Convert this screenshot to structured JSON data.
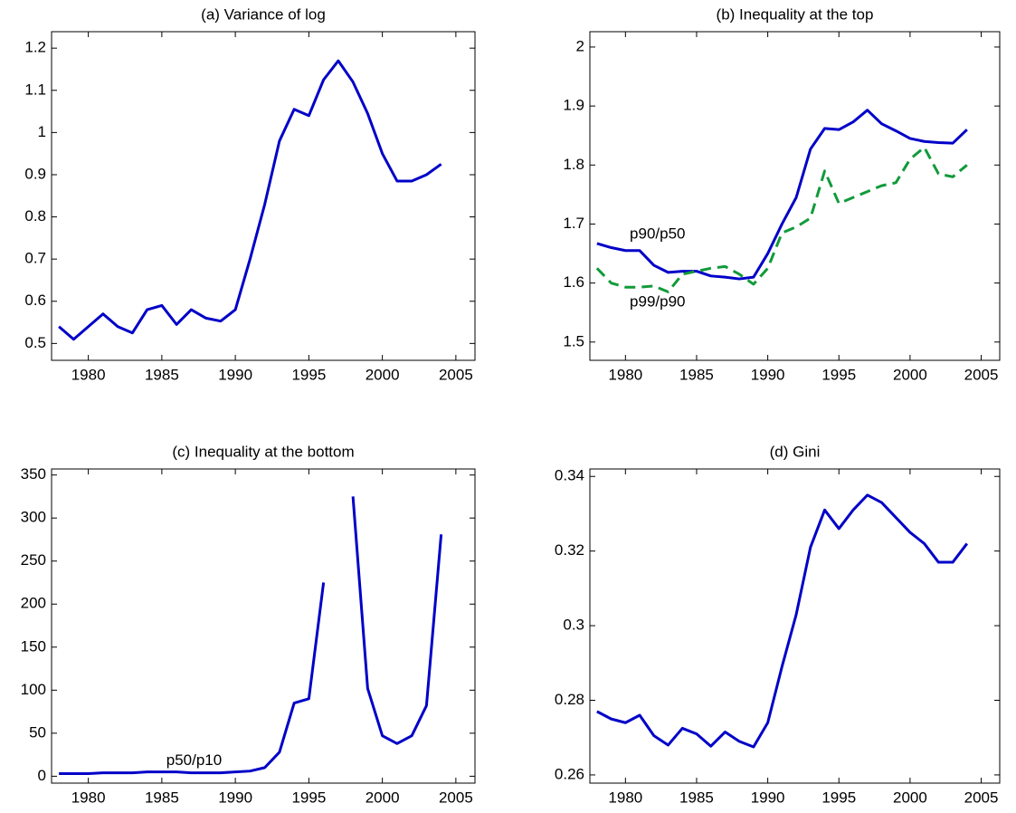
{
  "chart_data": [
    {
      "type": "line",
      "title": "(a) Variance of log",
      "x": [
        1978,
        1979,
        1980,
        1981,
        1982,
        1983,
        1984,
        1985,
        1986,
        1987,
        1988,
        1989,
        1990,
        1991,
        1992,
        1993,
        1994,
        1995,
        1996,
        1997,
        1998,
        1999,
        2000,
        2001,
        2002,
        2003,
        2004
      ],
      "series": [
        {
          "color": "#0000c8",
          "dash": false,
          "values": [
            0.54,
            0.51,
            0.54,
            0.57,
            0.54,
            0.525,
            0.58,
            0.59,
            0.545,
            0.58,
            0.56,
            0.553,
            0.58,
            0.7,
            0.83,
            0.98,
            1.055,
            1.04,
            1.125,
            1.17,
            1.12,
            1.045,
            0.95,
            0.885,
            0.885,
            0.9,
            0.925
          ]
        }
      ],
      "xlim": [
        1977.5,
        2006.3
      ],
      "xticks": [
        1980,
        1985,
        1990,
        1995,
        2000,
        2005
      ],
      "ylim": [
        0.46,
        1.239
      ],
      "yticks": [
        0.5,
        0.6,
        0.7,
        0.8,
        0.9,
        1,
        1.1,
        1.2
      ]
    },
    {
      "type": "line",
      "title": "(b) Inequality at the top",
      "x": [
        1978,
        1979,
        1980,
        1981,
        1982,
        1983,
        1984,
        1985,
        1986,
        1987,
        1988,
        1989,
        1990,
        1991,
        1992,
        1993,
        1994,
        1995,
        1996,
        1997,
        1998,
        1999,
        2000,
        2001,
        2002,
        2003,
        2004
      ],
      "series": [
        {
          "color": "#0000c8",
          "dash": false,
          "values": [
            1.667,
            1.66,
            1.655,
            1.655,
            1.63,
            1.618,
            1.62,
            1.62,
            1.612,
            1.61,
            1.607,
            1.61,
            1.65,
            1.7,
            1.745,
            1.827,
            1.862,
            1.86,
            1.873,
            1.893,
            1.87,
            1.858,
            1.845,
            1.84,
            1.838,
            1.837,
            1.86
          ]
        },
        {
          "color": "#119a3a",
          "dash": true,
          "values": [
            1.625,
            1.6,
            1.593,
            1.593,
            1.595,
            1.585,
            1.615,
            1.62,
            1.625,
            1.628,
            1.615,
            1.598,
            1.625,
            1.685,
            1.695,
            1.71,
            1.79,
            1.735,
            1.745,
            1.755,
            1.765,
            1.77,
            1.81,
            1.83,
            1.785,
            1.78,
            1.8
          ]
        }
      ],
      "annotations": [
        {
          "text": "p90/p50",
          "x": 1980.3,
          "y": 1.682
        },
        {
          "text": "p99/p90",
          "x": 1980.3,
          "y": 1.567
        }
      ],
      "xlim": [
        1977.5,
        2006.3
      ],
      "xticks": [
        1980,
        1985,
        1990,
        1995,
        2000,
        2005
      ],
      "ylim": [
        1.469,
        2.026
      ],
      "yticks": [
        1.5,
        1.6,
        1.7,
        1.8,
        1.9,
        2
      ]
    },
    {
      "type": "line",
      "title": "(c) Inequality at the bottom",
      "x": [
        1978,
        1979,
        1980,
        1981,
        1982,
        1983,
        1984,
        1985,
        1986,
        1987,
        1988,
        1989,
        1990,
        1991,
        1992,
        1993,
        1994,
        1995,
        1996,
        1997,
        1998,
        1999,
        2000,
        2001,
        2002,
        2003,
        2004
      ],
      "series": [
        {
          "color": "#0000c8",
          "dash": false,
          "values": [
            3,
            3,
            3,
            4,
            4,
            4,
            5,
            5,
            5,
            4,
            4,
            4,
            5,
            6,
            10,
            28,
            85,
            90,
            225,
            null,
            325,
            102,
            47,
            38,
            47,
            82,
            281
          ]
        }
      ],
      "annotations": [
        {
          "text": "p50/p10",
          "x": 1985.3,
          "y": 18
        }
      ],
      "xlim": [
        1977.5,
        2006.3
      ],
      "xticks": [
        1980,
        1985,
        1990,
        1995,
        2000,
        2005
      ],
      "ylim": [
        -8,
        357
      ],
      "yticks": [
        0,
        50,
        100,
        150,
        200,
        250,
        300,
        350
      ]
    },
    {
      "type": "line",
      "title": "(d) Gini",
      "x": [
        1978,
        1979,
        1980,
        1981,
        1982,
        1983,
        1984,
        1985,
        1986,
        1987,
        1988,
        1989,
        1990,
        1991,
        1992,
        1993,
        1994,
        1995,
        1996,
        1997,
        1998,
        1999,
        2000,
        2001,
        2002,
        2003,
        2004
      ],
      "series": [
        {
          "color": "#0000c8",
          "dash": false,
          "values": [
            0.277,
            0.275,
            0.274,
            0.276,
            0.2705,
            0.268,
            0.2725,
            0.271,
            0.2677,
            0.2715,
            0.269,
            0.2675,
            0.274,
            0.289,
            0.303,
            0.321,
            0.331,
            0.326,
            0.331,
            0.335,
            0.333,
            0.329,
            0.325,
            0.322,
            0.317,
            0.317,
            0.322
          ]
        }
      ],
      "xlim": [
        1977.5,
        2006.3
      ],
      "xticks": [
        1980,
        1985,
        1990,
        1995,
        2000,
        2005
      ],
      "ylim": [
        0.2578,
        0.342
      ],
      "yticks": [
        0.26,
        0.28,
        0.3,
        0.32,
        0.34
      ]
    }
  ]
}
